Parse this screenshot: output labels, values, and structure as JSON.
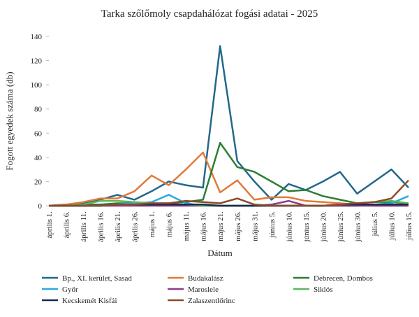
{
  "chart_data": {
    "type": "line",
    "title": "Tarka szőlőmoly csapdahálózat fogási adatai - 2025",
    "x_label": "Dátum",
    "y_label": "Fogott egyedek száma (db)",
    "categories": [
      "április 1.",
      "április 6.",
      "április 11.",
      "április 16.",
      "április 21.",
      "április 26.",
      "május 1.",
      "május 6.",
      "május 11.",
      "május 16.",
      "május 21.",
      "május 26.",
      "május 31.",
      "június 5.",
      "június 10.",
      "június 15.",
      "június 20.",
      "június 25.",
      "június 30.",
      "július 5.",
      "július 10.",
      "július 15."
    ],
    "ylim": [
      0,
      140
    ],
    "yticks": [
      0,
      20,
      40,
      60,
      80,
      100,
      120,
      140
    ],
    "legend": "bottom",
    "series": [
      {
        "name": "Bp., XI. kerület, Sasad",
        "color": "#23688a",
        "values": [
          0,
          1,
          2,
          5,
          9,
          5,
          12,
          20,
          17,
          15,
          132,
          37,
          20,
          5,
          18,
          13,
          20,
          28,
          10,
          20,
          30,
          15
        ]
      },
      {
        "name": "Budakalász",
        "color": "#e07b39",
        "values": [
          0,
          1,
          3,
          6,
          6,
          12,
          25,
          17,
          30,
          44,
          11,
          21,
          5,
          7,
          7,
          4,
          3,
          2,
          1,
          0,
          0,
          0
        ]
      },
      {
        "name": "Debrecen, Dombos",
        "color": "#2e7d32",
        "values": [
          0,
          0,
          1,
          1,
          2,
          2,
          2,
          2,
          3,
          5,
          52,
          32,
          28,
          20,
          12,
          13,
          8,
          5,
          2,
          3,
          3,
          2
        ]
      },
      {
        "name": "Győr",
        "color": "#29a8e0",
        "values": [
          0,
          0,
          0,
          0,
          1,
          2,
          3,
          9,
          2,
          0,
          0,
          0,
          0,
          0,
          0,
          0,
          0,
          0,
          0,
          1,
          2,
          8
        ]
      },
      {
        "name": "Maroslele",
        "color": "#8e3a8e",
        "values": [
          0,
          0,
          0,
          0,
          0,
          0,
          0,
          0,
          0,
          0,
          0,
          0,
          0,
          1,
          4,
          0,
          0,
          0,
          0,
          0,
          0,
          0
        ]
      },
      {
        "name": "Siklós",
        "color": "#5cb85c",
        "values": [
          0,
          0,
          1,
          4,
          4,
          3,
          2,
          1,
          1,
          0,
          0,
          0,
          0,
          0,
          0,
          0,
          0,
          1,
          2,
          3,
          4,
          2
        ]
      },
      {
        "name": "Kecskemét Kisfái",
        "color": "#1a2a4a",
        "values": [
          0,
          0,
          0,
          0,
          1,
          1,
          1,
          1,
          1,
          1,
          0,
          0,
          0,
          0,
          0,
          0,
          0,
          1,
          1,
          1,
          1,
          1
        ]
      },
      {
        "name": "Zalaszentlőrinc",
        "color": "#8b4a2b",
        "values": [
          0,
          0,
          0,
          0,
          1,
          1,
          2,
          2,
          4,
          3,
          2,
          6,
          1,
          0,
          0,
          0,
          0,
          1,
          2,
          3,
          6,
          21
        ]
      }
    ]
  }
}
